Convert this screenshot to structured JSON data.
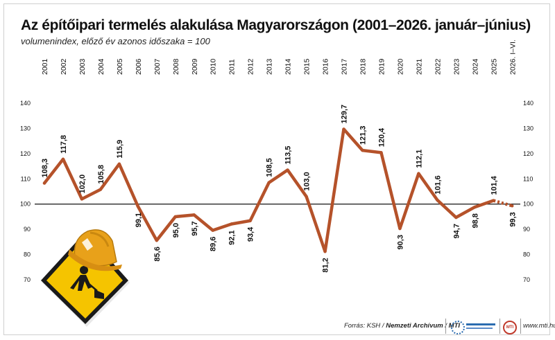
{
  "title": "Az építőipari termelés alakulása Magyarországon (2001–2026. január–június)",
  "subtitle": "volumenindex, előző év azonos időszaka = 100",
  "chart_data": {
    "type": "line",
    "title": "Az építőipari termelés alakulása Magyarországon (2001–2026. január–június)",
    "subtitle": "volumenindex, előző év azonos időszaka = 100",
    "categories": [
      "2001",
      "2002",
      "2003",
      "2004",
      "2005",
      "2006",
      "2007",
      "2008",
      "2009",
      "2010",
      "2011",
      "2012",
      "2013",
      "2014",
      "2015",
      "2016",
      "2017",
      "2018",
      "2019",
      "2020",
      "2021",
      "2022",
      "2023",
      "2024",
      "2025",
      "2026. I–VI."
    ],
    "series": [
      {
        "values": [
          108.3,
          117.8,
          102.0,
          105.8,
          115.9,
          99.1,
          85.6,
          95.0,
          95.7,
          89.6,
          92.1,
          93.4,
          108.5,
          113.5,
          103.0,
          81.2,
          129.7,
          121.3,
          120.4,
          90.3,
          112.1,
          101.6,
          94.7,
          98.8,
          101.4,
          99.3
        ],
        "value_labels": [
          "108,3",
          "117,8",
          "102,0",
          "105,8",
          "115,9",
          "99,1",
          "85,6",
          "95,0",
          "95,7",
          "89,6",
          "92,1",
          "93,4",
          "108,5",
          "113,5",
          "103,0",
          "81,2",
          "129,7",
          "121,3",
          "120,4",
          "90,3",
          "112,1",
          "101,6",
          "94,7",
          "98,8",
          "101,4",
          "99,3"
        ]
      }
    ],
    "label_side": [
      "above",
      "above",
      "above",
      "above",
      "above",
      "below",
      "below",
      "below",
      "below",
      "below",
      "below",
      "below",
      "above",
      "above",
      "above",
      "below",
      "above",
      "above",
      "above",
      "below",
      "above",
      "above",
      "below",
      "below",
      "above",
      "below"
    ],
    "dotted_last_segment": true,
    "line_color": "#b5522a",
    "reference_line": 100,
    "ylim": [
      70,
      140
    ],
    "yticks": [
      "70",
      "80",
      "90",
      "100",
      "110",
      "120",
      "130",
      "140"
    ],
    "grid": false,
    "xlabel": "",
    "ylabel": ""
  },
  "footer": {
    "source_prefix": "Forrás: ",
    "source_ksh": "KSH",
    "source_sep1": " / ",
    "source_archive": "Nemzeti Archívum",
    "source_sep2": " / ",
    "source_mti": "MTI",
    "site": "www.mti.hu",
    "logo_mti_text": "MTI"
  },
  "colors": {
    "line": "#b5522a",
    "sign_yellow": "#f5c400",
    "helmet": "#e8a11a",
    "text": "#111111"
  },
  "icons": [
    "construction-sign-icon",
    "hard-hat-icon",
    "duna-logo-icon",
    "mti-logo-icon"
  ]
}
